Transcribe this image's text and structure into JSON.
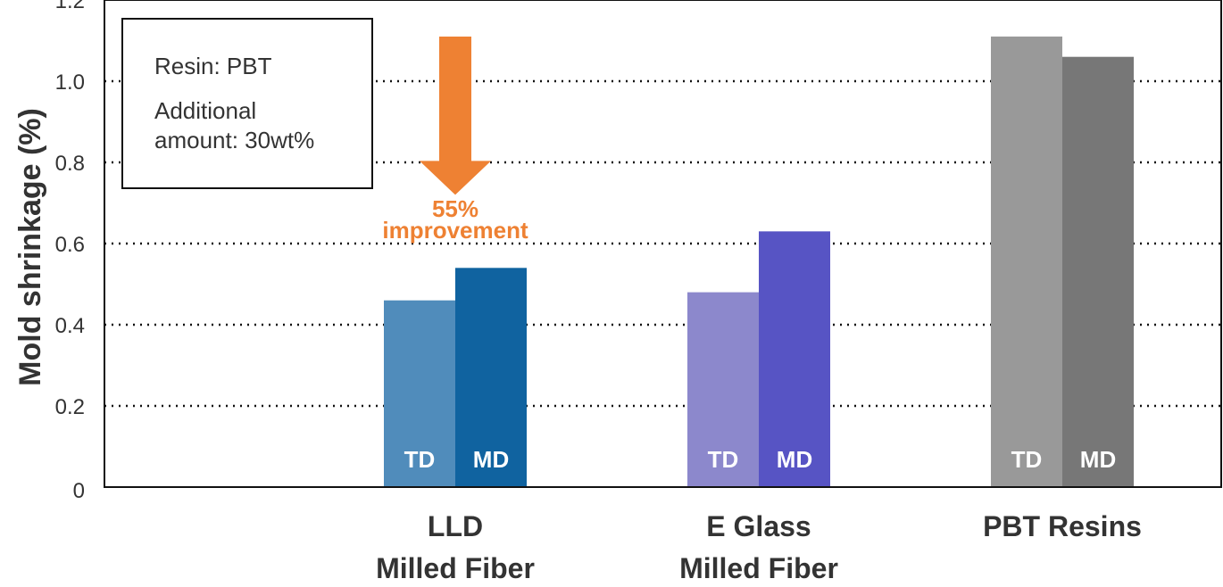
{
  "chart_data": {
    "type": "bar",
    "ylabel": "Mold shrinkage (%)",
    "ylim": [
      0,
      1.2
    ],
    "yticks": [
      "0",
      "0.2",
      "0.4",
      "0.6",
      "0.8",
      "1.0",
      "1.2"
    ],
    "grid": "horizontal dotted",
    "categories": [
      {
        "line1": "LLD",
        "line2": "Milled Fiber"
      },
      {
        "line1": "E Glass",
        "line2": "Milled Fiber"
      },
      {
        "line1": "PBT Resins",
        "line2": ""
      }
    ],
    "series": [
      {
        "name": "TD",
        "values": [
          0.46,
          0.48,
          1.11
        ],
        "colors": [
          "#508cbb",
          "#8c88cc",
          "#999999"
        ]
      },
      {
        "name": "MD",
        "values": [
          0.54,
          0.63,
          1.06
        ],
        "colors": [
          "#1063a0",
          "#5754c4",
          "#777777"
        ]
      }
    ],
    "annotation": {
      "lines": [
        "55%",
        "improvement"
      ],
      "color": "#ee8133",
      "arrow_from": 1.11,
      "arrow_to": 0.72
    },
    "notes": {
      "line1": "Resin: PBT",
      "line2": "Additional",
      "line3": "amount: 30wt%"
    }
  }
}
